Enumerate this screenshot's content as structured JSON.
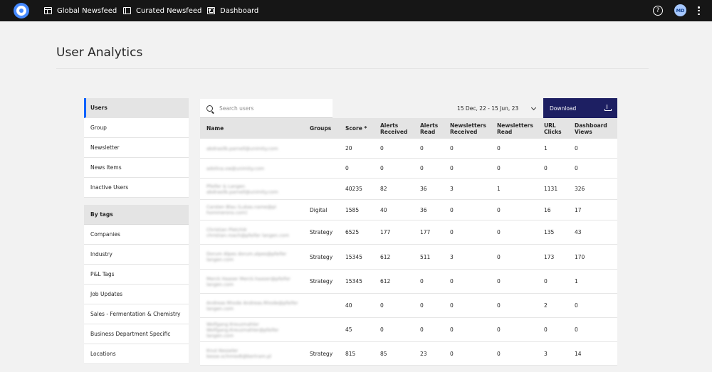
{
  "nav": {
    "items": [
      {
        "label": "Global Newsfeed",
        "icon": "grid-icon"
      },
      {
        "label": "Curated Newsfeed",
        "icon": "book-icon"
      },
      {
        "label": "Dashboard",
        "icon": "dashboard-icon"
      }
    ],
    "help_icon": "?",
    "avatar_initials": "MD"
  },
  "page": {
    "title": "User Analytics"
  },
  "sidebar": {
    "items": [
      "Users",
      "Group",
      "Newsletter",
      "News Items",
      "Inactive Users"
    ],
    "group_title": "By tags",
    "tag_items": [
      "Companies",
      "Industry",
      "P&L Tags",
      "Job Updates",
      "Sales - Fermentation & Chemistry",
      "Business Department Specific",
      "Locations"
    ]
  },
  "toolbar": {
    "search_placeholder": "Search users",
    "date_range": "15 Dec, 22 - 15 Jun, 23",
    "download_label": "Download"
  },
  "table": {
    "columns": [
      [
        "Name",
        ""
      ],
      [
        "Groups",
        ""
      ],
      [
        "Score *",
        ""
      ],
      [
        "Alerts",
        "Received"
      ],
      [
        "Alerts",
        "Read"
      ],
      [
        "Newsletters",
        "Received"
      ],
      [
        "Newsletters",
        "Read"
      ],
      [
        "URL",
        "Clicks"
      ],
      [
        "Dashboard",
        "Views"
      ]
    ],
    "rows": [
      {
        "name": "abdrasilb.parnell@unimity.com",
        "group": "",
        "score": "20",
        "alerts_received": "0",
        "alerts_read": "0",
        "nl_received": "0",
        "nl_read": "0",
        "url_clicks": "1",
        "dash_views": "0"
      },
      {
        "name": "adolina.xw@unimity.com",
        "group": "",
        "score": "0",
        "alerts_received": "0",
        "alerts_read": "0",
        "nl_received": "0",
        "nl_read": "0",
        "url_clicks": "0",
        "dash_views": "0"
      },
      {
        "name": "Pfeifer & Langen abdrasilb.parnell@unimity.com",
        "group": "",
        "score": "40235",
        "alerts_received": "82",
        "alerts_read": "36",
        "nl_received": "3",
        "nl_read": "1",
        "url_clicks": "1131",
        "dash_views": "326"
      },
      {
        "name": "Carsten Blau (Lukas.name@pi hommerons.com)",
        "group": "Digital",
        "score": "1585",
        "alerts_received": "40",
        "alerts_read": "36",
        "nl_received": "0",
        "nl_read": "0",
        "url_clicks": "16",
        "dash_views": "17"
      },
      {
        "name": "Christian Pletchik christian.roach@pfeifer langen.com",
        "group": "Strategy",
        "score": "6525",
        "alerts_received": "177",
        "alerts_read": "177",
        "nl_received": "0",
        "nl_read": "0",
        "url_clicks": "135",
        "dash_views": "43"
      },
      {
        "name": "Dorum Alpes dorum.alpes@pfeifer langen.com",
        "group": "Strategy",
        "score": "15345",
        "alerts_received": "612",
        "alerts_read": "511",
        "nl_received": "3",
        "nl_read": "0",
        "url_clicks": "173",
        "dash_views": "170"
      },
      {
        "name": "Merck Haaser Merck.haaser@pfeifer langen.com",
        "group": "Strategy",
        "score": "15345",
        "alerts_received": "612",
        "alerts_read": "0",
        "nl_received": "0",
        "nl_read": "0",
        "url_clicks": "0",
        "dash_views": "1"
      },
      {
        "name": "Andreas Rhode Andreas.Rhode@pfeifer langen.com",
        "group": "",
        "score": "40",
        "alerts_received": "0",
        "alerts_read": "0",
        "nl_received": "0",
        "nl_read": "0",
        "url_clicks": "2",
        "dash_views": "0"
      },
      {
        "name": "Wolfgang Kreuzmahler Wolfgang.Kreuzmahler@pfeifer langen.com",
        "group": "",
        "score": "45",
        "alerts_received": "0",
        "alerts_read": "0",
        "nl_received": "0",
        "nl_read": "0",
        "url_clicks": "0",
        "dash_views": "0"
      },
      {
        "name": "Knut Kesseler kesse.schmiedt@bertram.pl",
        "group": "Strategy",
        "score": "815",
        "alerts_received": "85",
        "alerts_read": "23",
        "nl_received": "0",
        "nl_read": "0",
        "url_clicks": "3",
        "dash_views": "14"
      }
    ]
  }
}
